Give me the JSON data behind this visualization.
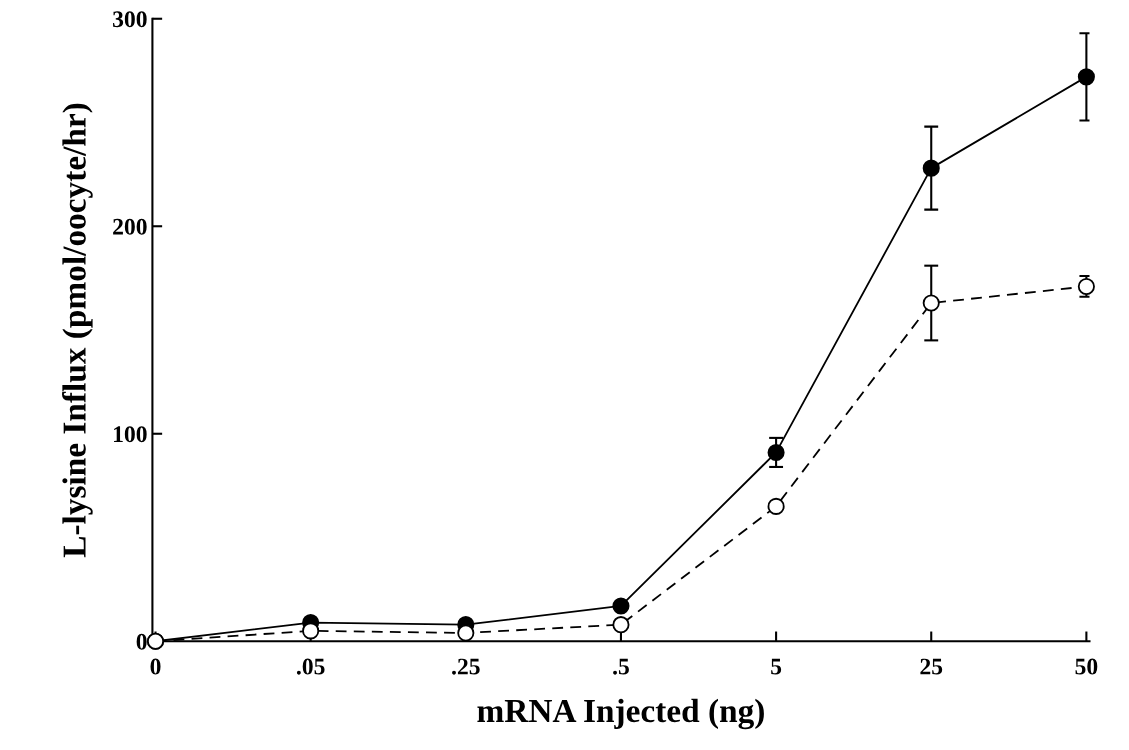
{
  "chart_data": {
    "type": "line",
    "xlabel": "mRNA Injected (ng)",
    "ylabel": "L-lysine Influx (pmol/oocyte/hr)",
    "categories": [
      "0",
      ".05",
      ".25",
      ".5",
      "5",
      "25",
      "50"
    ],
    "ylim": [
      0,
      300
    ],
    "yticks": [
      0,
      100,
      200,
      300
    ],
    "grid": false,
    "legend": false,
    "marker": "circle",
    "series": [
      {
        "color": "#000000",
        "line_style": "solid",
        "values": [
          0,
          9,
          8,
          17,
          91,
          228,
          272
        ],
        "errors": [
          null,
          null,
          null,
          null,
          7,
          20,
          21
        ]
      },
      {
        "color": "#000000",
        "line_style": "dashed",
        "values": [
          0,
          5,
          4,
          8,
          65,
          163,
          171
        ],
        "errors": [
          null,
          null,
          null,
          null,
          null,
          18,
          5
        ]
      }
    ]
  }
}
